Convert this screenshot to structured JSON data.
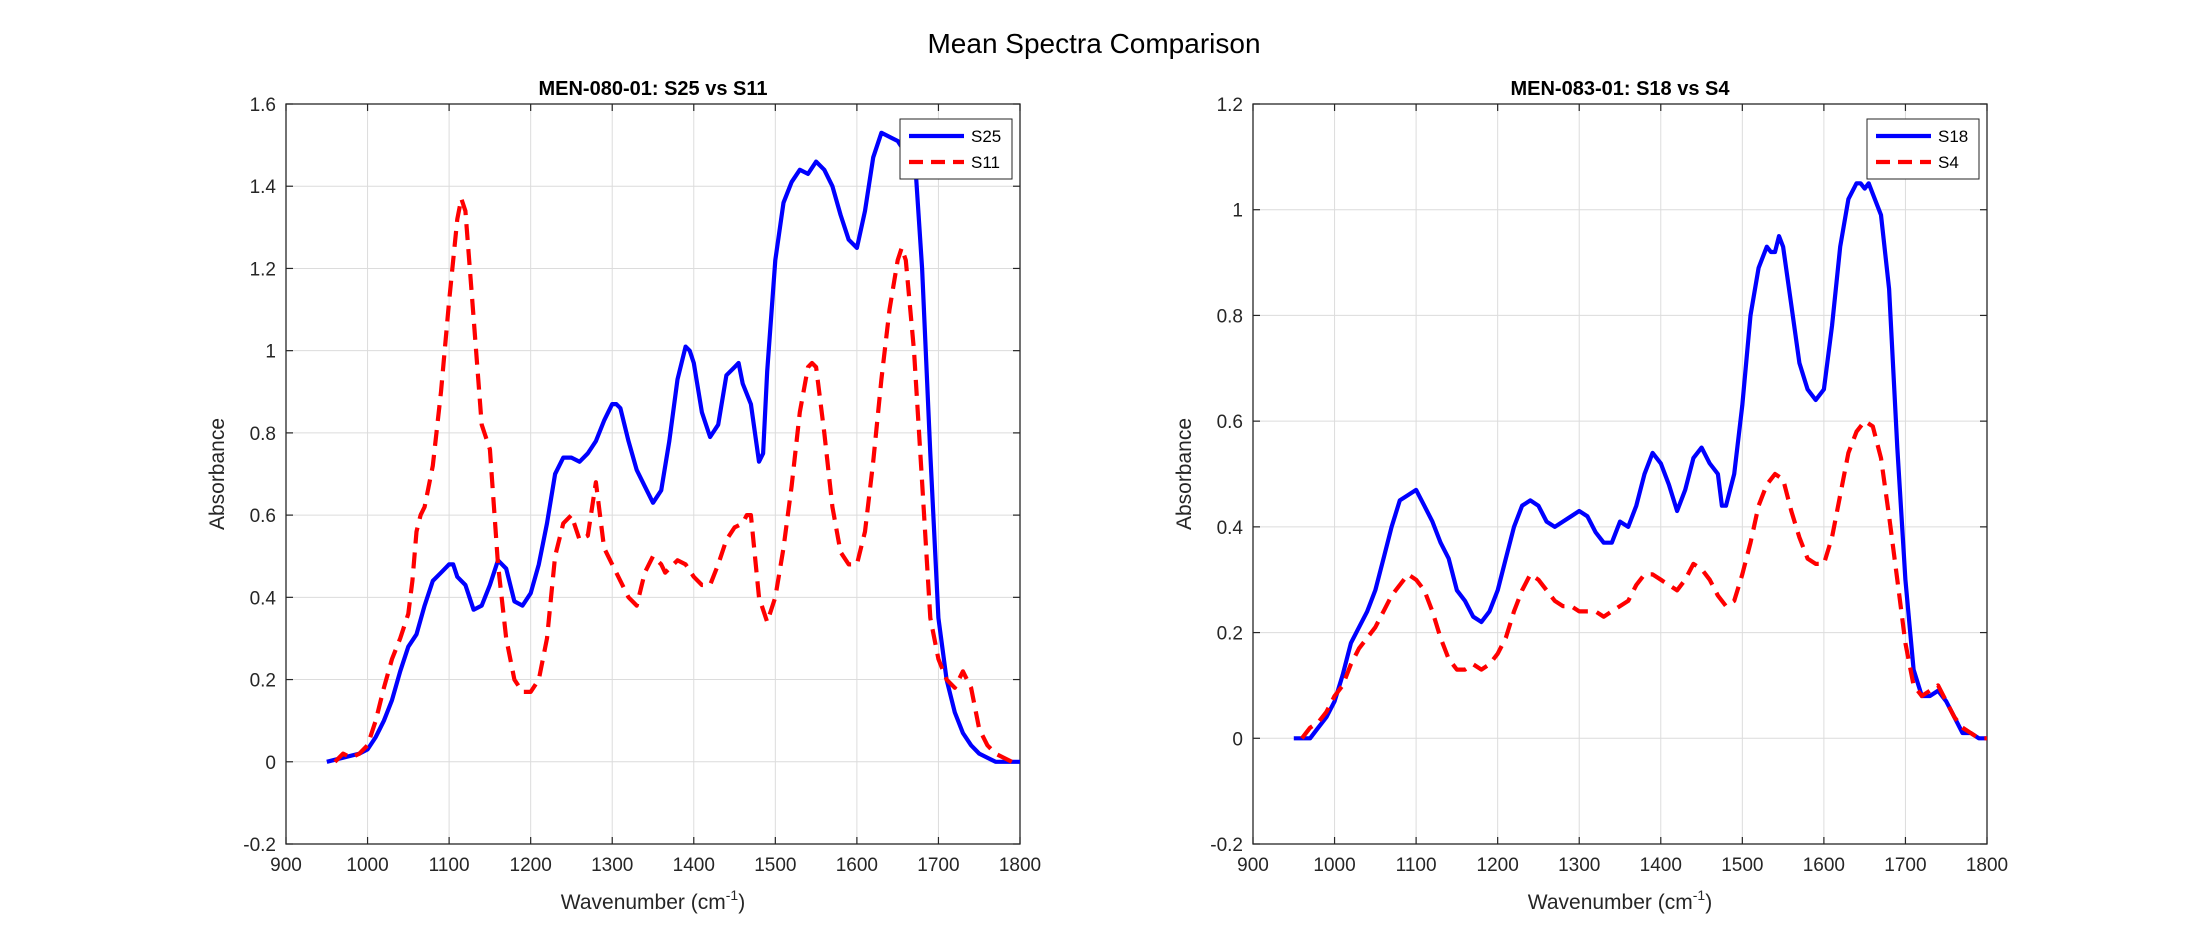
{
  "figure": {
    "title": "Mean Spectra Comparison",
    "colors": {
      "grid": "#dcdcdc",
      "axis": "#262626",
      "series_primary": "#0000ff",
      "series_secondary": "#ff0000"
    }
  },
  "chart_data": [
    {
      "type": "line",
      "title": "MEN-080-01: S25 vs S11",
      "xlabel": "Wavenumber (cm",
      "xlabel_sup": "-1",
      "xlabel_suffix": ")",
      "ylabel": "Absorbance",
      "xlim": [
        900,
        1800
      ],
      "ylim": [
        -0.2,
        1.6
      ],
      "xticks": [
        900,
        1000,
        1100,
        1200,
        1300,
        1400,
        1500,
        1600,
        1700,
        1800
      ],
      "yticks": [
        -0.2,
        0,
        0.2,
        0.4,
        0.6,
        0.8,
        1,
        1.2,
        1.4,
        1.6
      ],
      "ytick_labels": [
        "-0.2",
        "0",
        "0.2",
        "0.4",
        "0.6",
        "0.8",
        "1",
        "1.2",
        "1.4",
        "1.6"
      ],
      "grid": true,
      "legend": "top-right",
      "series": [
        {
          "name": "S25",
          "style": "solid",
          "color": "#0000ff",
          "x": [
            950,
            970,
            990,
            1000,
            1010,
            1020,
            1030,
            1040,
            1050,
            1060,
            1070,
            1080,
            1090,
            1100,
            1105,
            1110,
            1120,
            1130,
            1140,
            1150,
            1160,
            1170,
            1180,
            1190,
            1200,
            1210,
            1220,
            1230,
            1240,
            1250,
            1260,
            1270,
            1280,
            1290,
            1300,
            1305,
            1310,
            1320,
            1330,
            1340,
            1350,
            1360,
            1370,
            1380,
            1390,
            1395,
            1400,
            1410,
            1420,
            1430,
            1440,
            1450,
            1455,
            1460,
            1470,
            1480,
            1485,
            1490,
            1500,
            1510,
            1520,
            1530,
            1540,
            1550,
            1560,
            1570,
            1580,
            1590,
            1600,
            1610,
            1620,
            1630,
            1640,
            1650,
            1660,
            1670,
            1680,
            1690,
            1700,
            1710,
            1720,
            1730,
            1740,
            1750,
            1760,
            1770,
            1780,
            1790,
            1800
          ],
          "y": [
            0.0,
            0.01,
            0.02,
            0.03,
            0.06,
            0.1,
            0.15,
            0.22,
            0.28,
            0.31,
            0.38,
            0.44,
            0.46,
            0.48,
            0.48,
            0.45,
            0.43,
            0.37,
            0.38,
            0.43,
            0.49,
            0.47,
            0.39,
            0.38,
            0.41,
            0.48,
            0.58,
            0.7,
            0.74,
            0.74,
            0.73,
            0.75,
            0.78,
            0.83,
            0.87,
            0.87,
            0.86,
            0.78,
            0.71,
            0.67,
            0.63,
            0.66,
            0.78,
            0.93,
            1.01,
            1.0,
            0.97,
            0.85,
            0.79,
            0.82,
            0.94,
            0.96,
            0.97,
            0.92,
            0.87,
            0.73,
            0.75,
            0.95,
            1.22,
            1.36,
            1.41,
            1.44,
            1.43,
            1.46,
            1.44,
            1.4,
            1.33,
            1.27,
            1.25,
            1.34,
            1.47,
            1.53,
            1.52,
            1.51,
            1.48,
            1.5,
            1.2,
            0.75,
            0.35,
            0.2,
            0.12,
            0.07,
            0.04,
            0.02,
            0.01,
            0.0,
            0.0,
            0.0,
            0.0
          ]
        },
        {
          "name": "S11",
          "style": "dashed",
          "color": "#ff0000",
          "x": [
            960,
            970,
            980,
            990,
            1000,
            1010,
            1020,
            1030,
            1040,
            1050,
            1055,
            1060,
            1065,
            1070,
            1080,
            1090,
            1100,
            1110,
            1115,
            1120,
            1130,
            1140,
            1145,
            1150,
            1160,
            1170,
            1180,
            1190,
            1200,
            1210,
            1220,
            1230,
            1240,
            1250,
            1260,
            1270,
            1280,
            1290,
            1300,
            1310,
            1320,
            1330,
            1340,
            1350,
            1355,
            1360,
            1365,
            1370,
            1380,
            1390,
            1400,
            1410,
            1420,
            1430,
            1440,
            1450,
            1460,
            1465,
            1470,
            1480,
            1485,
            1490,
            1500,
            1510,
            1520,
            1530,
            1540,
            1545,
            1550,
            1560,
            1570,
            1580,
            1590,
            1600,
            1610,
            1620,
            1630,
            1640,
            1650,
            1655,
            1660,
            1670,
            1680,
            1690,
            1700,
            1710,
            1720,
            1730,
            1740,
            1750,
            1760,
            1770,
            1780,
            1790,
            1800
          ],
          "y": [
            0.0,
            0.02,
            0.01,
            0.02,
            0.04,
            0.1,
            0.18,
            0.25,
            0.3,
            0.36,
            0.44,
            0.56,
            0.6,
            0.62,
            0.72,
            0.9,
            1.12,
            1.32,
            1.37,
            1.34,
            1.08,
            0.82,
            0.79,
            0.76,
            0.48,
            0.3,
            0.2,
            0.17,
            0.17,
            0.2,
            0.3,
            0.5,
            0.58,
            0.6,
            0.54,
            0.55,
            0.68,
            0.52,
            0.48,
            0.44,
            0.4,
            0.38,
            0.46,
            0.5,
            0.49,
            0.48,
            0.46,
            0.47,
            0.49,
            0.48,
            0.45,
            0.43,
            0.43,
            0.48,
            0.54,
            0.57,
            0.58,
            0.6,
            0.6,
            0.4,
            0.37,
            0.34,
            0.4,
            0.52,
            0.67,
            0.85,
            0.96,
            0.97,
            0.96,
            0.8,
            0.62,
            0.51,
            0.48,
            0.48,
            0.56,
            0.73,
            0.93,
            1.1,
            1.22,
            1.25,
            1.22,
            1.0,
            0.68,
            0.35,
            0.25,
            0.2,
            0.18,
            0.22,
            0.18,
            0.08,
            0.04,
            0.02,
            0.01,
            0.0,
            0.0
          ]
        }
      ]
    },
    {
      "type": "line",
      "title": "MEN-083-01: S18 vs S4",
      "xlabel": "Wavenumber (cm",
      "xlabel_sup": "-1",
      "xlabel_suffix": ")",
      "ylabel": "Absorbance",
      "xlim": [
        900,
        1800
      ],
      "ylim": [
        -0.2,
        1.2
      ],
      "xticks": [
        900,
        1000,
        1100,
        1200,
        1300,
        1400,
        1500,
        1600,
        1700,
        1800
      ],
      "yticks": [
        -0.2,
        0,
        0.2,
        0.4,
        0.6,
        0.8,
        1,
        1.2
      ],
      "ytick_labels": [
        "-0.2",
        "0",
        "0.2",
        "0.4",
        "0.6",
        "0.8",
        "1",
        "1.2"
      ],
      "grid": true,
      "legend": "top-right",
      "series": [
        {
          "name": "S18",
          "style": "solid",
          "color": "#0000ff",
          "x": [
            950,
            960,
            970,
            980,
            990,
            1000,
            1010,
            1020,
            1030,
            1040,
            1050,
            1060,
            1070,
            1080,
            1090,
            1100,
            1110,
            1120,
            1130,
            1140,
            1150,
            1160,
            1170,
            1180,
            1190,
            1200,
            1210,
            1220,
            1230,
            1240,
            1250,
            1260,
            1270,
            1280,
            1290,
            1300,
            1310,
            1320,
            1330,
            1340,
            1350,
            1360,
            1370,
            1380,
            1390,
            1400,
            1410,
            1420,
            1430,
            1440,
            1450,
            1460,
            1470,
            1475,
            1480,
            1490,
            1500,
            1510,
            1520,
            1530,
            1535,
            1540,
            1545,
            1550,
            1560,
            1570,
            1580,
            1590,
            1600,
            1610,
            1620,
            1630,
            1640,
            1645,
            1650,
            1655,
            1660,
            1670,
            1680,
            1690,
            1700,
            1710,
            1720,
            1730,
            1740,
            1750,
            1760,
            1770,
            1780,
            1790,
            1800
          ],
          "y": [
            0.0,
            0.0,
            0.0,
            0.02,
            0.04,
            0.07,
            0.12,
            0.18,
            0.21,
            0.24,
            0.28,
            0.34,
            0.4,
            0.45,
            0.46,
            0.47,
            0.44,
            0.41,
            0.37,
            0.34,
            0.28,
            0.26,
            0.23,
            0.22,
            0.24,
            0.28,
            0.34,
            0.4,
            0.44,
            0.45,
            0.44,
            0.41,
            0.4,
            0.41,
            0.42,
            0.43,
            0.42,
            0.39,
            0.37,
            0.37,
            0.41,
            0.4,
            0.44,
            0.5,
            0.54,
            0.52,
            0.48,
            0.43,
            0.47,
            0.53,
            0.55,
            0.52,
            0.5,
            0.44,
            0.44,
            0.5,
            0.63,
            0.8,
            0.89,
            0.93,
            0.92,
            0.92,
            0.95,
            0.93,
            0.82,
            0.71,
            0.66,
            0.64,
            0.66,
            0.78,
            0.93,
            1.02,
            1.05,
            1.05,
            1.04,
            1.05,
            1.03,
            0.99,
            0.85,
            0.55,
            0.3,
            0.13,
            0.08,
            0.08,
            0.09,
            0.07,
            0.04,
            0.01,
            0.01,
            0.0,
            0.0
          ]
        },
        {
          "name": "S4",
          "style": "dashed",
          "color": "#ff0000",
          "x": [
            960,
            970,
            980,
            990,
            1000,
            1010,
            1020,
            1030,
            1040,
            1050,
            1060,
            1070,
            1080,
            1090,
            1100,
            1110,
            1120,
            1130,
            1140,
            1150,
            1160,
            1170,
            1180,
            1190,
            1200,
            1210,
            1220,
            1230,
            1240,
            1250,
            1260,
            1270,
            1280,
            1290,
            1300,
            1310,
            1320,
            1330,
            1340,
            1350,
            1360,
            1370,
            1380,
            1390,
            1400,
            1410,
            1420,
            1430,
            1440,
            1450,
            1460,
            1470,
            1480,
            1490,
            1500,
            1510,
            1520,
            1530,
            1540,
            1550,
            1560,
            1570,
            1580,
            1590,
            1600,
            1610,
            1620,
            1630,
            1640,
            1650,
            1660,
            1670,
            1680,
            1690,
            1700,
            1710,
            1720,
            1730,
            1740,
            1750,
            1760,
            1770,
            1780,
            1790,
            1800
          ],
          "y": [
            0.0,
            0.02,
            0.03,
            0.05,
            0.08,
            0.1,
            0.14,
            0.17,
            0.19,
            0.21,
            0.24,
            0.27,
            0.29,
            0.31,
            0.3,
            0.28,
            0.24,
            0.19,
            0.15,
            0.13,
            0.13,
            0.14,
            0.13,
            0.14,
            0.16,
            0.19,
            0.24,
            0.28,
            0.31,
            0.3,
            0.28,
            0.26,
            0.25,
            0.25,
            0.24,
            0.24,
            0.24,
            0.23,
            0.24,
            0.25,
            0.26,
            0.29,
            0.31,
            0.31,
            0.3,
            0.29,
            0.28,
            0.3,
            0.33,
            0.32,
            0.3,
            0.27,
            0.25,
            0.26,
            0.31,
            0.37,
            0.44,
            0.48,
            0.5,
            0.49,
            0.43,
            0.38,
            0.34,
            0.33,
            0.33,
            0.38,
            0.46,
            0.54,
            0.58,
            0.6,
            0.59,
            0.53,
            0.42,
            0.3,
            0.18,
            0.1,
            0.08,
            0.09,
            0.1,
            0.07,
            0.04,
            0.02,
            0.01,
            0.0,
            0.0
          ]
        }
      ]
    }
  ]
}
